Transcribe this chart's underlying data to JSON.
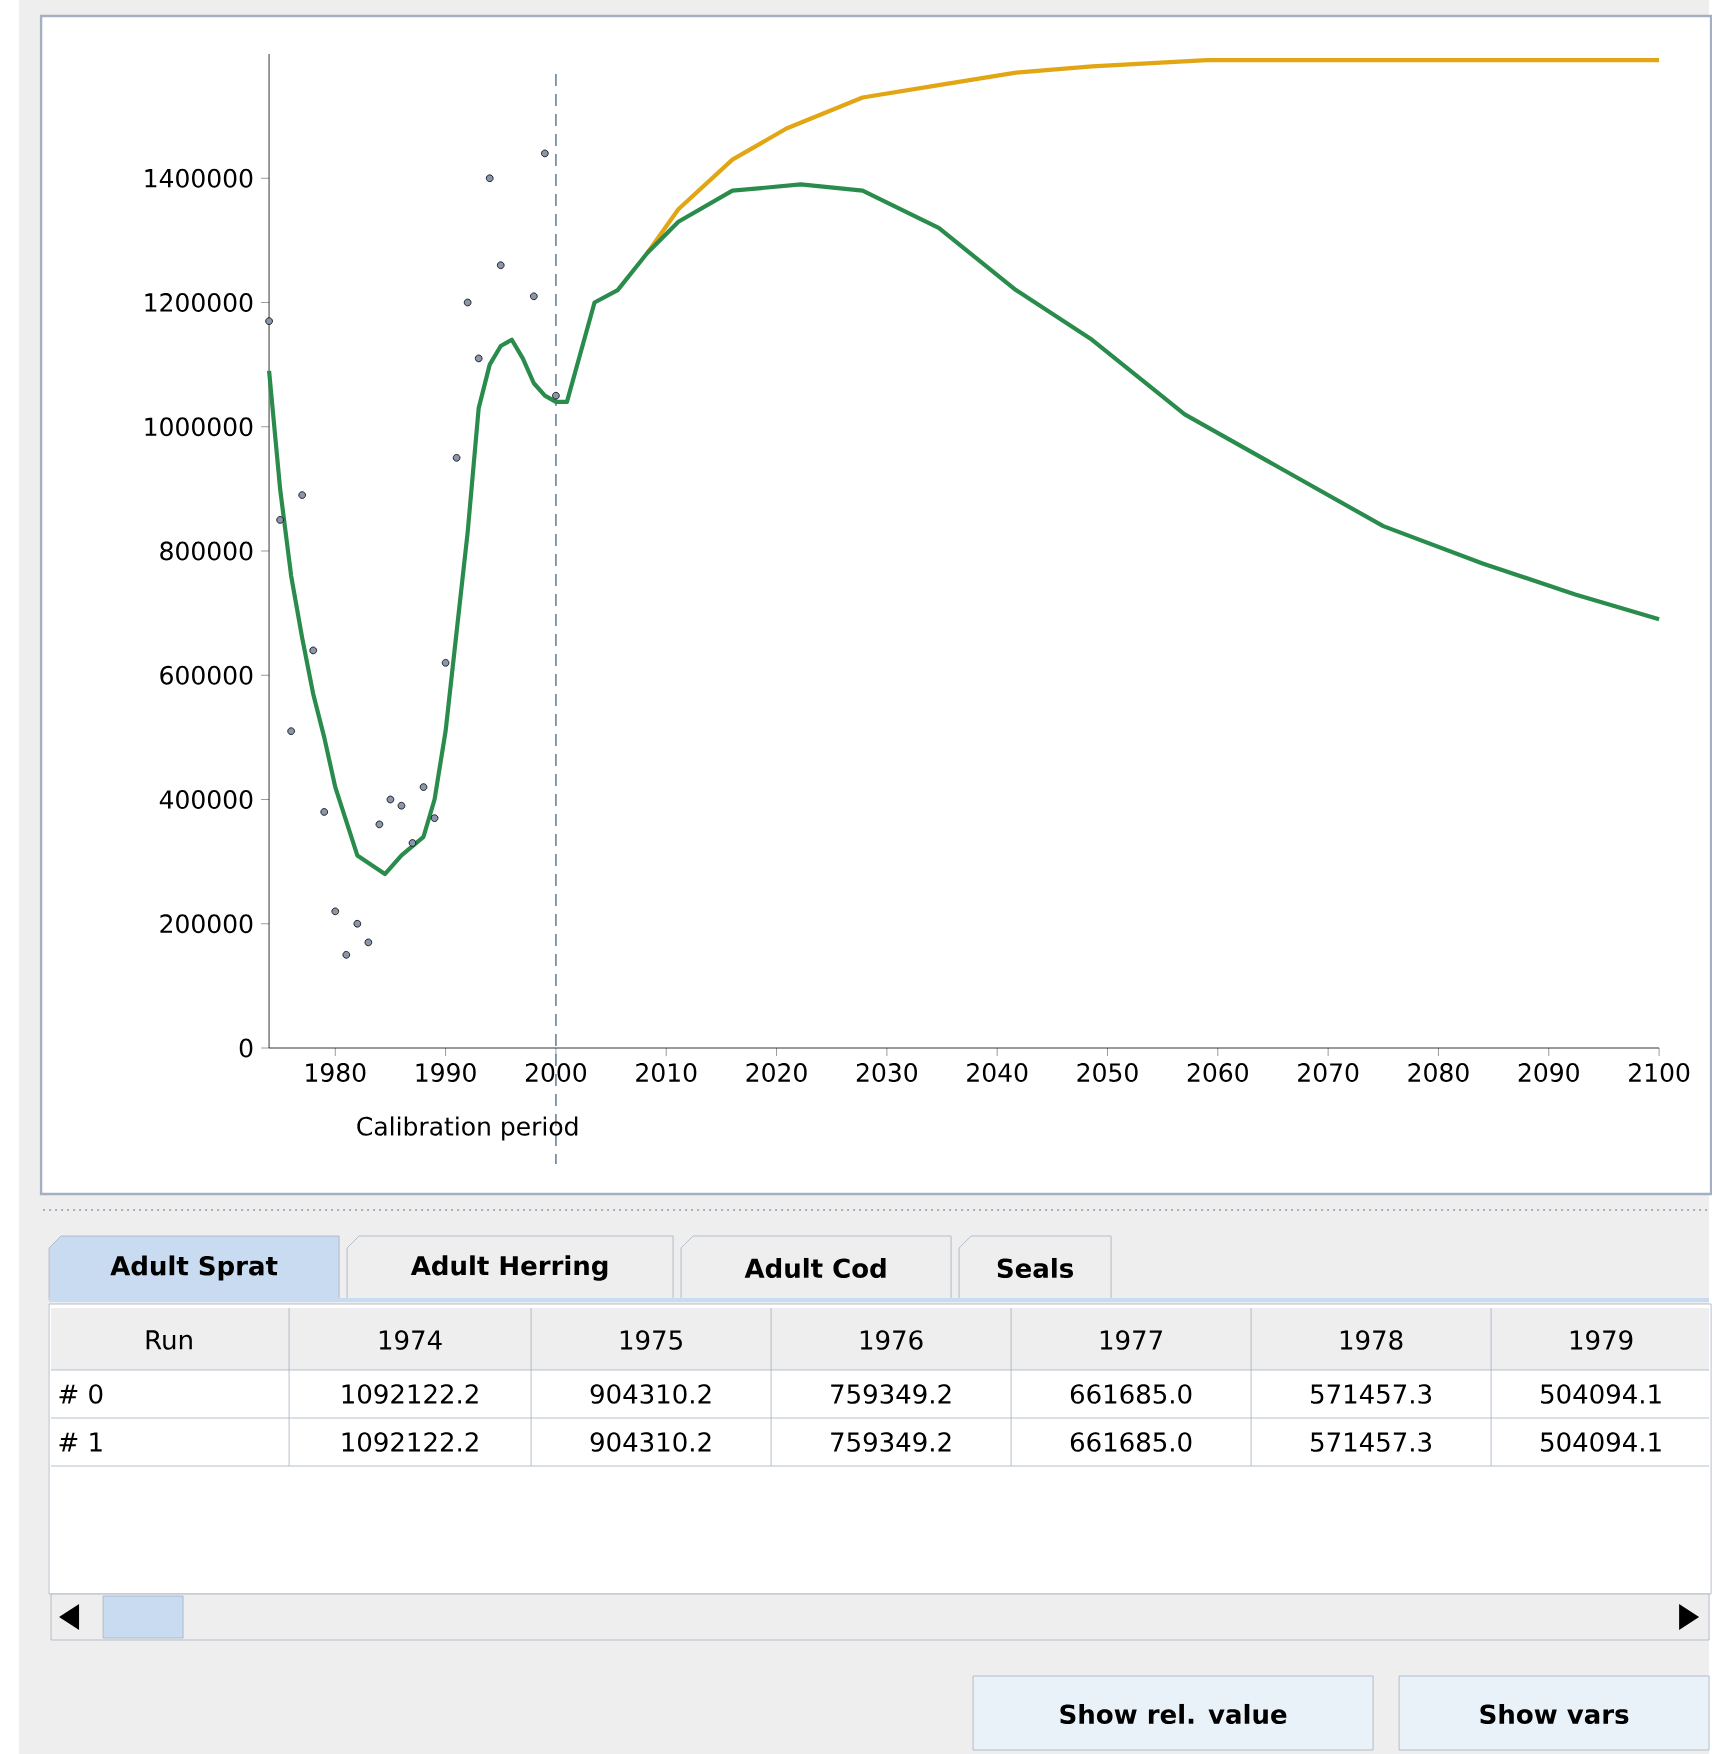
{
  "chart_data": {
    "type": "line",
    "xlim": [
      1974,
      2100
    ],
    "ylim": [
      0,
      1600000
    ],
    "xticks": [
      1980,
      1990,
      2000,
      2010,
      2020,
      2030,
      2040,
      2050,
      2060,
      2070,
      2080,
      2090,
      2100
    ],
    "yticks": [
      0,
      200000,
      400000,
      600000,
      800000,
      1000000,
      1200000,
      1400000
    ],
    "series": [
      {
        "type": "scatter",
        "color": "#8a96ac",
        "x": [
          1974,
          1975,
          1976,
          1977,
          1978,
          1979,
          1980,
          1981,
          1982,
          1983,
          1984,
          1985,
          1986,
          1987,
          1988,
          1989,
          1990,
          1991,
          1992,
          1993,
          1994,
          1995,
          1998,
          1999,
          2000
        ],
        "values": [
          1170000,
          850000,
          510000,
          890000,
          640000,
          380000,
          220000,
          150000,
          200000,
          170000,
          360000,
          400000,
          390000,
          330000,
          420000,
          370000,
          620000,
          950000,
          1200000,
          1110000,
          1400000,
          1260000,
          1210000,
          1440000,
          1050000
        ]
      },
      {
        "type": "line",
        "color": "#e2a614",
        "x": [
          2008.3,
          2011.1,
          2016,
          2020.9,
          2027.8,
          2034.7,
          2041.7,
          2048.6,
          2059,
          2073,
          2100
        ],
        "values": [
          1280000,
          1350000,
          1430000,
          1480000,
          1530000,
          1550000,
          1570000,
          1580000,
          1590000,
          1590000,
          1590000
        ]
      },
      {
        "type": "line",
        "color": "#2a8c4c",
        "x": [
          1974,
          1975,
          1976,
          1977,
          1978,
          1979,
          1980,
          1982,
          1984.5,
          1986,
          1988,
          1989,
          1990,
          1991,
          1992,
          1993,
          1994,
          1995,
          1996,
          1997,
          1998,
          1999,
          2000,
          2001,
          2003.5,
          2005.6,
          2008.3,
          2011.1,
          2016,
          2022.2,
          2027.8,
          2034.7,
          2041.7,
          2048.6,
          2057,
          2066,
          2075,
          2084,
          2092.4,
          2100
        ],
        "values": [
          1090000,
          900000,
          760000,
          660000,
          570000,
          500000,
          420000,
          310000,
          280000,
          310000,
          340000,
          400000,
          510000,
          670000,
          830000,
          1030000,
          1100000,
          1130000,
          1140000,
          1110000,
          1070000,
          1050000,
          1040000,
          1040000,
          1200000,
          1220000,
          1280000,
          1330000,
          1380000,
          1390000,
          1380000,
          1320000,
          1220000,
          1140000,
          1020000,
          930000,
          840000,
          780000,
          730000,
          690000
        ]
      }
    ],
    "ref_lines": [
      {
        "axis": "x",
        "value": 2000,
        "label": "Calibration period",
        "color": "#7890a8",
        "line_style": "dashed"
      }
    ],
    "annotations": [
      "Adult Sprat",
      "Adult Herring",
      "Adult Cod",
      "Seals",
      "Run",
      "1974",
      "1975",
      "1976",
      "1977",
      "1978",
      "1979",
      "# 0",
      "1092122.2",
      "904310.2",
      "759349.2",
      "661685.0",
      "571457.3",
      "504094.1",
      "# 1",
      "1092122.2",
      "904310.2",
      "759349.2",
      "661685.0",
      "571457.3",
      "504094.1",
      "Show rel. value",
      "Show vars"
    ]
  }
}
